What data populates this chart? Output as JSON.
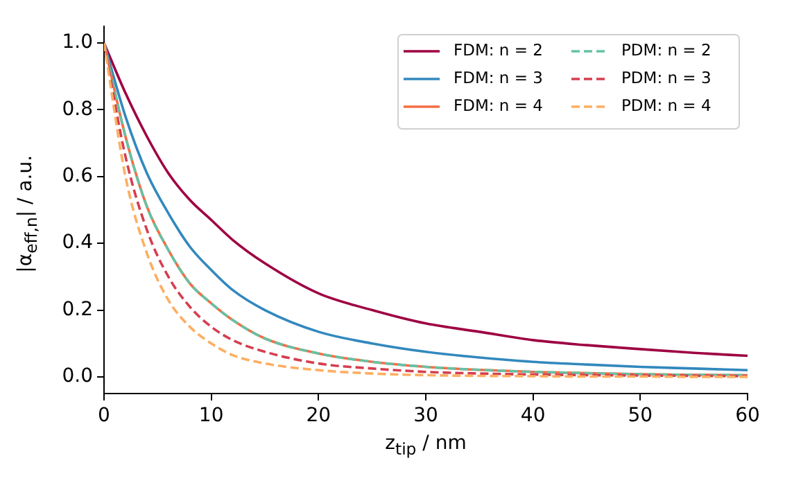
{
  "chart_data": {
    "type": "line",
    "xlabel": "z$_{tip}$ / nm",
    "ylabel": "|α$_{eff,n}$| / a.u.",
    "x": [
      0,
      2,
      4,
      6,
      8,
      10,
      12,
      15,
      20,
      25,
      30,
      35,
      40,
      45,
      50,
      55,
      60
    ],
    "series": [
      {
        "name": "FDM: n = 2",
        "color": "#9e0142",
        "line_style": "solid",
        "values": [
          1,
          0.85,
          0.72,
          0.61,
          0.53,
          0.47,
          0.41,
          0.34,
          0.25,
          0.2,
          0.16,
          0.135,
          0.11,
          0.095,
          0.083,
          0.072,
          0.063
        ]
      },
      {
        "name": "FDM: n = 3",
        "color": "#3288bd",
        "line_style": "solid",
        "values": [
          1,
          0.78,
          0.61,
          0.49,
          0.39,
          0.32,
          0.26,
          0.2,
          0.135,
          0.1,
          0.075,
          0.058,
          0.045,
          0.037,
          0.03,
          0.025,
          0.02
        ]
      },
      {
        "name": "FDM: n = 4",
        "color": "#f46d43",
        "line_style": "solid",
        "values": [
          1,
          0.72,
          0.51,
          0.38,
          0.28,
          0.22,
          0.17,
          0.115,
          0.07,
          0.045,
          0.03,
          0.021,
          0.015,
          0.011,
          0.008,
          0.006,
          0.005
        ]
      },
      {
        "name": "PDM: n = 2",
        "color": "#66c2a5",
        "line_style": "dashed",
        "values": [
          1,
          0.72,
          0.51,
          0.38,
          0.28,
          0.22,
          0.17,
          0.115,
          0.07,
          0.045,
          0.03,
          0.021,
          0.015,
          0.011,
          0.008,
          0.006,
          0.005
        ]
      },
      {
        "name": "PDM: n = 3",
        "color": "#d53e4f",
        "line_style": "dashed",
        "values": [
          1,
          0.66,
          0.44,
          0.3,
          0.21,
          0.15,
          0.11,
          0.075,
          0.04,
          0.025,
          0.015,
          0.01,
          0.007,
          0.005,
          0.004,
          0.003,
          0.002
        ]
      },
      {
        "name": "PDM: n = 4",
        "color": "#fdae61",
        "line_style": "dashed",
        "values": [
          1,
          0.6,
          0.37,
          0.23,
          0.15,
          0.1,
          0.065,
          0.04,
          0.02,
          0.01,
          0.005,
          0.003,
          0.002,
          0.001,
          0.001,
          0,
          0
        ]
      }
    ],
    "xlim": [
      0,
      60
    ],
    "xticks": [
      0,
      10,
      20,
      30,
      40,
      50,
      60
    ],
    "ylim": [
      -0.05,
      1.05
    ],
    "yticks": [
      {
        "value": 0,
        "label": "0.0"
      },
      {
        "value": 0.2,
        "label": "0.2"
      },
      {
        "value": 0.4,
        "label": "0.4"
      },
      {
        "value": 0.6,
        "label": "0.6"
      },
      {
        "value": 0.8,
        "label": "0.8"
      },
      {
        "value": 1,
        "label": "1.0"
      }
    ],
    "grid": false,
    "legend": "top right",
    "marker": "none"
  }
}
